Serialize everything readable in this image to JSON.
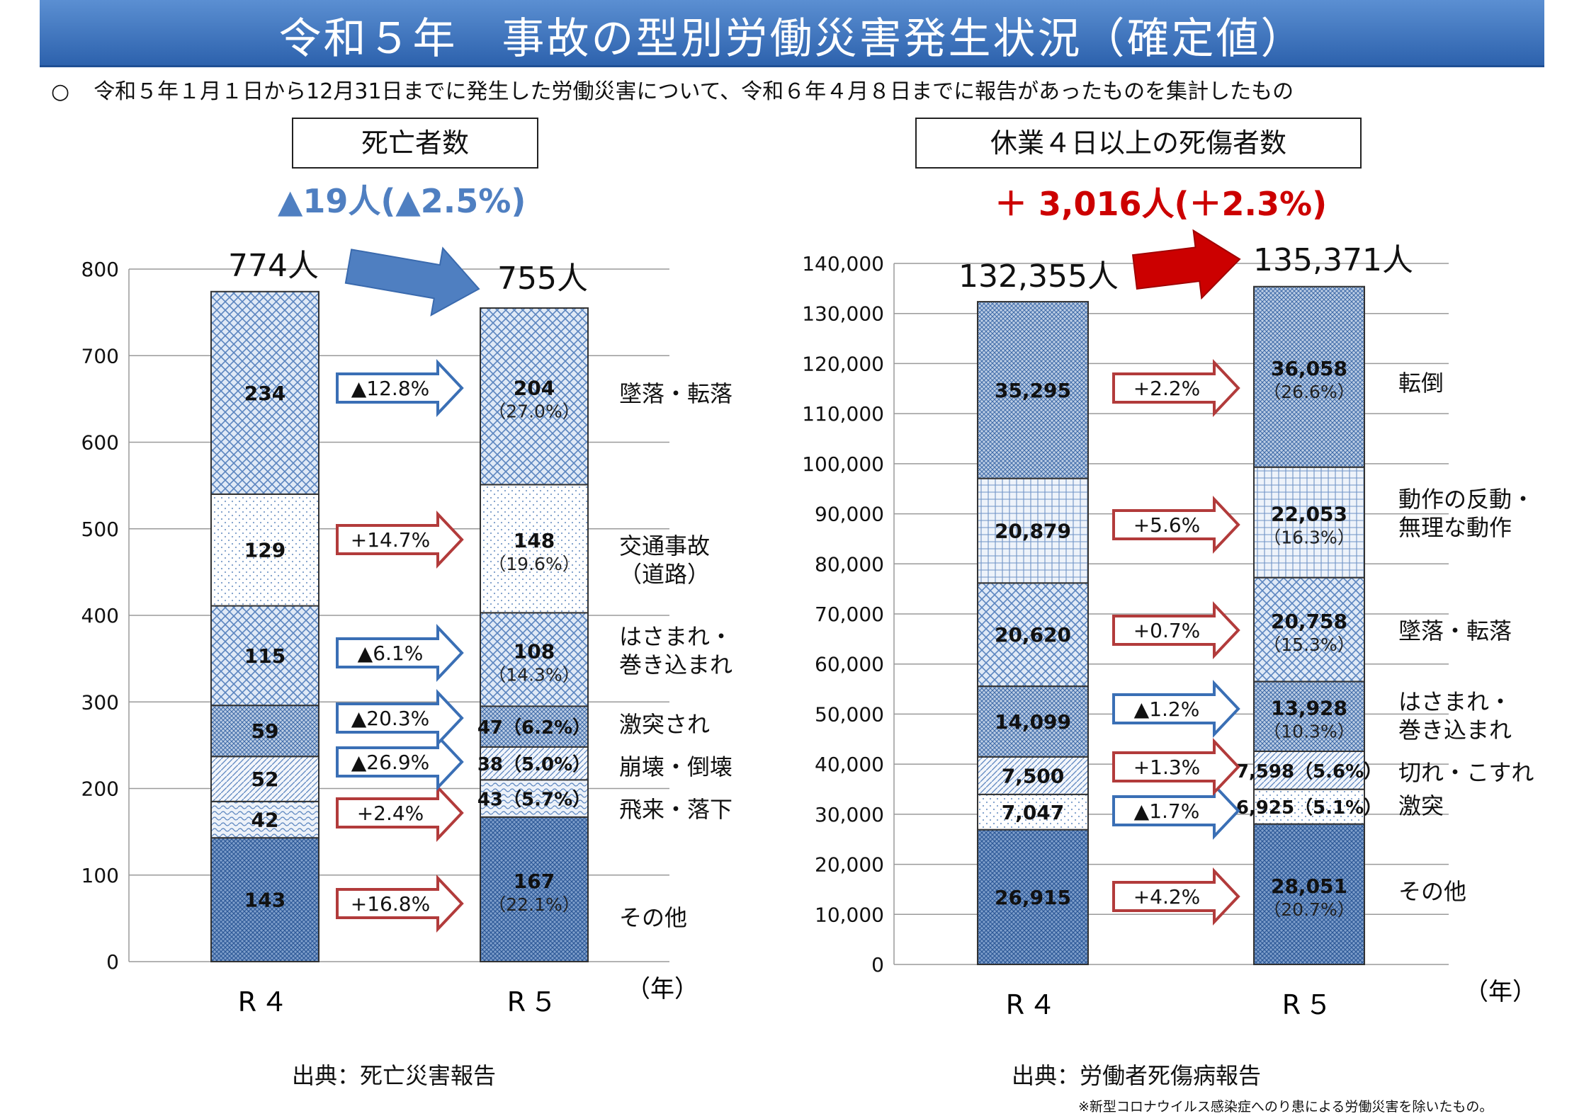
{
  "title": "令和５年　事故の型別労働災害発生状況（確定値）",
  "note": {
    "bullet": "○",
    "text": "令和５年１月１日から12月31日までに発生した労働災害について、令和６年４月８日までに報告があったものを集計したもの"
  },
  "colors": {
    "title_bg": "#3a70bb",
    "blue_delta": "#4f7fc1",
    "red_delta": "#cc0000",
    "bar_border": "#333333",
    "arrow_blue": "#3a6fb5",
    "arrow_red": "#b23b3b"
  },
  "left": {
    "box_title": "死亡者数",
    "delta": "▲19人(▲2.5%)",
    "source": "出典：死亡災害報告"
  },
  "right": {
    "box_title": "休業４日以上の死傷者数",
    "delta": "＋ 3,016人(＋2.3%)",
    "source": "出典：労働者死傷病報告",
    "footnote": "※新型コロナウイルス感染症へのり患による労働災害を除いたもの。"
  },
  "chart_data": [
    {
      "type": "stacked-bar",
      "title": "死亡者数",
      "categories": [
        "R４",
        "R５"
      ],
      "x_unit": "（年）",
      "ylim": [
        0,
        800
      ],
      "yticks": [
        0,
        100,
        200,
        300,
        400,
        500,
        600,
        700,
        800
      ],
      "grid": true,
      "totals": [
        "774人",
        "755人"
      ],
      "series": [
        {
          "name": "その他",
          "values": [
            143,
            167
          ],
          "r5_label": "167",
          "r5_pct": "（22.1%）",
          "change": "+16.8%",
          "trend": "up"
        },
        {
          "name": "飛来・落下",
          "values": [
            42,
            43
          ],
          "r5_label": "43（5.7%）",
          "r5_pct": "",
          "change": "+2.4%",
          "trend": "up"
        },
        {
          "name": "崩壊・倒壊",
          "values": [
            52,
            38
          ],
          "r5_label": "38（5.0%）",
          "r5_pct": "",
          "change": "▲26.9%",
          "trend": "down"
        },
        {
          "name": "激突され",
          "values": [
            59,
            47
          ],
          "r5_label": "47（6.2%）",
          "r5_pct": "",
          "change": "▲20.3%",
          "trend": "down"
        },
        {
          "name": "はさまれ・\n巻き込まれ",
          "values": [
            115,
            108
          ],
          "r5_label": "108",
          "r5_pct": "（14.3%）",
          "change": "▲6.1%",
          "trend": "down"
        },
        {
          "name": "交通事故\n（道路）",
          "values": [
            129,
            148
          ],
          "r5_label": "148",
          "r5_pct": "（19.6%）",
          "change": "+14.7%",
          "trend": "up"
        },
        {
          "name": "墜落・転落",
          "values": [
            234,
            204
          ],
          "r5_label": "204",
          "r5_pct": "（27.0%）",
          "change": "▲12.8%",
          "trend": "down"
        }
      ]
    },
    {
      "type": "stacked-bar",
      "title": "休業４日以上の死傷者数",
      "categories": [
        "R４",
        "R５"
      ],
      "x_unit": "（年）",
      "ylim": [
        0,
        140000
      ],
      "yticks": [
        0,
        10000,
        20000,
        30000,
        40000,
        50000,
        60000,
        70000,
        80000,
        90000,
        100000,
        110000,
        120000,
        130000,
        140000
      ],
      "grid": true,
      "totals": [
        "132,355人",
        "135,371人"
      ],
      "series": [
        {
          "name": "その他",
          "values": [
            26915,
            28051
          ],
          "r4_label": "26,915",
          "r5_label": "28,051",
          "r5_pct": "（20.7%）",
          "change": "+4.2%",
          "trend": "up"
        },
        {
          "name": "激突",
          "values": [
            7047,
            6925
          ],
          "r4_label": "7,047",
          "r5_label": "6,925（5.1%）",
          "r5_pct": "",
          "change": "▲1.7%",
          "trend": "down"
        },
        {
          "name": "切れ・こすれ",
          "values": [
            7500,
            7598
          ],
          "r4_label": "7,500",
          "r5_label": "7,598（5.6%）",
          "r5_pct": "",
          "change": "+1.3%",
          "trend": "up"
        },
        {
          "name": "はさまれ・\n巻き込まれ",
          "values": [
            14099,
            13928
          ],
          "r4_label": "14,099",
          "r5_label": "13,928",
          "r5_pct": "（10.3%）",
          "change": "▲1.2%",
          "trend": "down"
        },
        {
          "name": "墜落・転落",
          "values": [
            20620,
            20758
          ],
          "r4_label": "20,620",
          "r5_label": "20,758",
          "r5_pct": "（15.3%）",
          "change": "+0.7%",
          "trend": "up"
        },
        {
          "name": "動作の反動・\n無理な動作",
          "values": [
            20879,
            22053
          ],
          "r4_label": "20,879",
          "r5_label": "22,053",
          "r5_pct": "（16.3%）",
          "change": "+5.6%",
          "trend": "up"
        },
        {
          "name": "転倒",
          "values": [
            35295,
            36058
          ],
          "r4_label": "35,295",
          "r5_label": "36,058",
          "r5_pct": "（26.6%）",
          "change": "+2.2%",
          "trend": "up"
        }
      ]
    }
  ]
}
